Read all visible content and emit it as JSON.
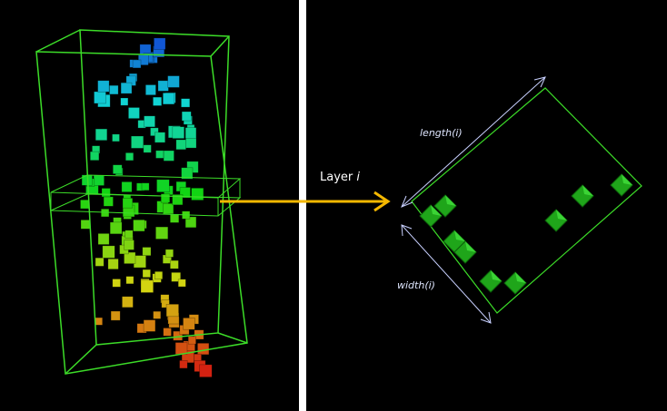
{
  "labels": {
    "layer": {
      "text": "Layer",
      "var": "i"
    },
    "length": "length(i)",
    "width": "width(i)"
  }
}
